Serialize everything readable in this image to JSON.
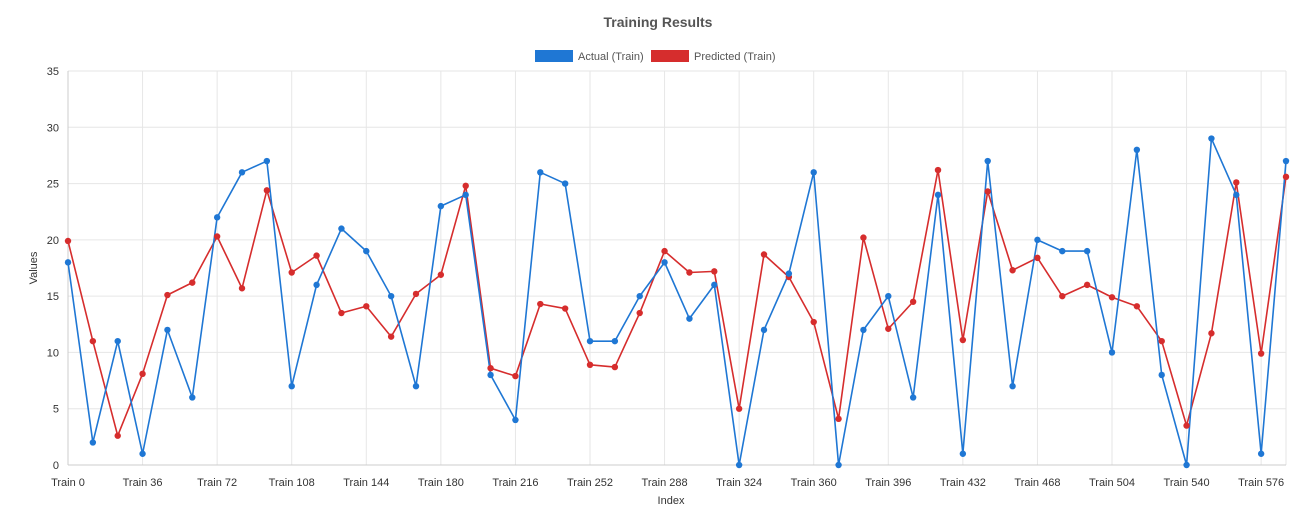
{
  "colors": {
    "actual": "#1f77d4",
    "predicted": "#d62d2d"
  },
  "chart_data": {
    "type": "line",
    "title": "Training Results",
    "xlabel": "Index",
    "ylabel": "Values",
    "ylim": [
      0,
      35
    ],
    "y_ticks": [
      "0",
      "5",
      "10",
      "15",
      "20",
      "25",
      "30",
      "35"
    ],
    "x": [
      0,
      12,
      24,
      36,
      48,
      60,
      72,
      84,
      96,
      108,
      120,
      132,
      144,
      156,
      168,
      180,
      192,
      204,
      216,
      228,
      240,
      252,
      264,
      276,
      288,
      300,
      312,
      324,
      336,
      348,
      360,
      372,
      384,
      396,
      408,
      420,
      432,
      444,
      456,
      468,
      480,
      492,
      504,
      516,
      528,
      540,
      552,
      564,
      576,
      588
    ],
    "x_tick_labels": [
      "Train 0",
      "Train 36",
      "Train 72",
      "Train 108",
      "Train 144",
      "Train 180",
      "Train 216",
      "Train 252",
      "Train 288",
      "Train 324",
      "Train 360",
      "Train 396",
      "Train 432",
      "Train 468",
      "Train 504",
      "Train 540",
      "Train 576"
    ],
    "x_ticks": [
      0,
      36,
      72,
      108,
      144,
      180,
      216,
      252,
      288,
      324,
      360,
      396,
      432,
      468,
      504,
      540,
      576
    ],
    "grid": true,
    "legend_position": "top-center",
    "series": [
      {
        "name": "Actual (Train)",
        "values": [
          18,
          2,
          11,
          1,
          12,
          6,
          22,
          26,
          27,
          7,
          16,
          21,
          19,
          15,
          7,
          23,
          24,
          8,
          4,
          26,
          25,
          11,
          11,
          15,
          18,
          13,
          16,
          0,
          12,
          17,
          26,
          0,
          12,
          15,
          6,
          24,
          1,
          27,
          7,
          20,
          19,
          19,
          10,
          28,
          8,
          0,
          29,
          24,
          1,
          27
        ]
      },
      {
        "name": "Predicted (Train)",
        "values": [
          19.9,
          11,
          2.6,
          8.1,
          15.1,
          16.2,
          20.3,
          15.7,
          24.4,
          17.1,
          18.6,
          13.5,
          14.1,
          11.4,
          15.2,
          16.9,
          24.8,
          8.6,
          7.9,
          14.3,
          13.9,
          8.9,
          8.7,
          13.5,
          19,
          17.1,
          17.2,
          5,
          18.7,
          16.7,
          12.7,
          4.1,
          20.2,
          12.1,
          14.5,
          26.2,
          11.1,
          24.3,
          17.3,
          18.4,
          15,
          16,
          14.9,
          14.1,
          11,
          3.5,
          11.7,
          25.1,
          9.9,
          25.6
        ]
      }
    ]
  }
}
